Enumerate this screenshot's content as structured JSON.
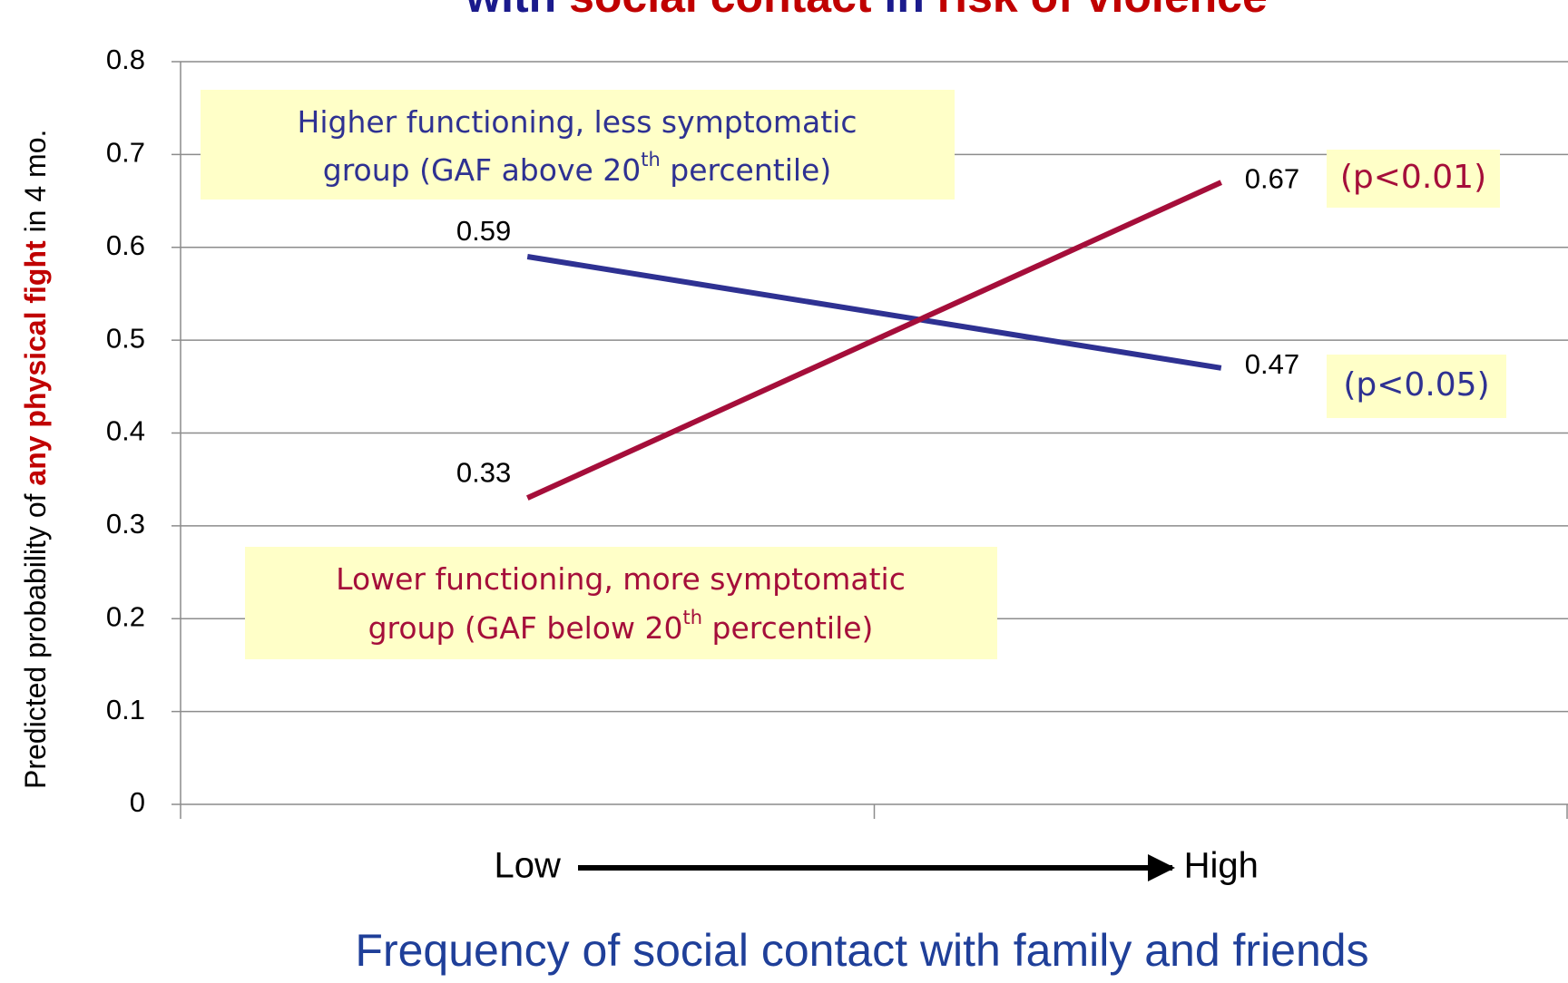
{
  "chart_data": {
    "type": "line",
    "title_parts": [
      {
        "text": "with ",
        "color": "#1a1a8c"
      },
      {
        "text": "social contact",
        "color": "#c00000"
      },
      {
        "text": " in ",
        "color": "#1a1a8c"
      },
      {
        "text": "risk of violence",
        "color": "#c00000"
      }
    ],
    "y_label_parts": [
      {
        "text": "Predicted probability of ",
        "color": "#000000",
        "bold": false
      },
      {
        "text": "any physical fight",
        "color": "#c00000",
        "bold": true
      },
      {
        "text": " in 4 mo.",
        "color": "#000000",
        "bold": false
      }
    ],
    "x_label": "Frequency of social contact with family and friends",
    "categories": [
      "Low",
      "High"
    ],
    "series": [
      {
        "color": "#2e3192",
        "values": [
          0.59,
          0.47
        ],
        "note": "(p<0.05)",
        "box_lines": [
          [
            "Higher functioning, less symptomatic"
          ],
          [
            "group (GAF above 20",
            "th",
            " percentile)"
          ]
        ]
      },
      {
        "color": "#a50e3a",
        "values": [
          0.33,
          0.67
        ],
        "note": "(p<0.01)",
        "box_lines": [
          [
            "Lower functioning, more symptomatic"
          ],
          [
            "group (GAF below 20",
            "th",
            " percentile)"
          ]
        ]
      }
    ],
    "ylim": [
      0,
      0.8
    ],
    "yticks": [
      0,
      0.1,
      0.2,
      0.3,
      0.4,
      0.5,
      0.6,
      0.7,
      0.8
    ],
    "grid": true
  }
}
